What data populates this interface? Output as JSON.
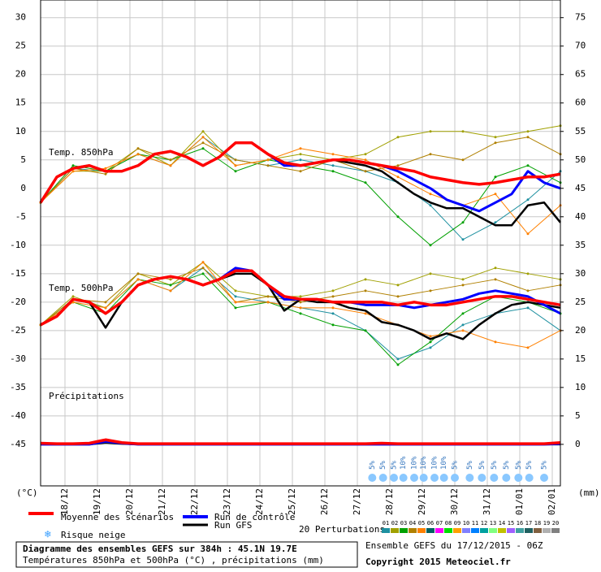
{
  "chart_data": {
    "type": "line",
    "labels": {
      "temp850": "Temp. 850hPa",
      "temp500": "Temp. 500hPa",
      "precip": "Précipitations"
    },
    "y_unit": "(°C)",
    "y2_unit": "(mm)",
    "xlim": [
      0,
      384
    ],
    "xticks": [
      {
        "value": 18,
        "label": "18/12"
      },
      {
        "value": 42,
        "label": "19/12"
      },
      {
        "value": 66,
        "label": "20/12"
      },
      {
        "value": 90,
        "label": "21/12"
      },
      {
        "value": 114,
        "label": "22/12"
      },
      {
        "value": 138,
        "label": "23/12"
      },
      {
        "value": 162,
        "label": "24/12"
      },
      {
        "value": 186,
        "label": "25/12"
      },
      {
        "value": 210,
        "label": "26/12"
      },
      {
        "value": 234,
        "label": "27/12"
      },
      {
        "value": 258,
        "label": "28/12"
      },
      {
        "value": 282,
        "label": "29/12"
      },
      {
        "value": 306,
        "label": "30/12"
      },
      {
        "value": 330,
        "label": "31/12"
      },
      {
        "value": 354,
        "label": "01/01"
      },
      {
        "value": 378,
        "label": "02/01"
      }
    ],
    "ylim": [
      -52.3,
      33.1
    ],
    "yticks": [
      30,
      25,
      20,
      15,
      10,
      5,
      0,
      -5,
      -10,
      -15,
      -20,
      -25,
      -30,
      -35,
      -40,
      -45
    ],
    "y2lim": [
      -7.3,
      78.1
    ],
    "y2ticks": [
      75,
      70,
      65,
      60,
      55,
      50,
      45,
      40,
      35,
      30,
      25,
      20,
      15,
      10,
      5,
      0
    ],
    "grid": true,
    "x": [
      0,
      12,
      24,
      36,
      48,
      60,
      72,
      84,
      96,
      108,
      120,
      132,
      144,
      156,
      168,
      180,
      192,
      204,
      216,
      228,
      240,
      252,
      264,
      276,
      288,
      300,
      312,
      324,
      336,
      348,
      360,
      372,
      384
    ],
    "series": [
      {
        "name": "Moyenne des scénarios",
        "color": "#ff0000",
        "values": [
          -2.5,
          2,
          3.5,
          4,
          3,
          3,
          4,
          6,
          6.5,
          5.5,
          4,
          5.5,
          8,
          8,
          6,
          4.5,
          4,
          4.5,
          5,
          5,
          4.5,
          4,
          3.5,
          3,
          2,
          1.5,
          1,
          0.7,
          1,
          1.5,
          2,
          2,
          2.5
        ],
        "values_500": [
          -24,
          -22.5,
          -19.5,
          -20,
          -22,
          -20,
          -17,
          -16,
          -15.5,
          -16,
          -17,
          -16,
          -14.5,
          -14.5,
          -17,
          -19,
          -19.5,
          -19.5,
          -20,
          -20,
          -20,
          -20,
          -20.5,
          -20,
          -20.5,
          -20.5,
          -20,
          -19.5,
          -19,
          -19,
          -19.5,
          -20,
          -20.5
        ],
        "values_precip": [
          0.2,
          0.1,
          0.1,
          0.2,
          0.8,
          0.3,
          0.1,
          0.1,
          0.1,
          0.1,
          0.1,
          0.1,
          0.1,
          0.1,
          0.1,
          0.1,
          0.1,
          0.1,
          0.1,
          0.1,
          0.1,
          0.2,
          0.1,
          0.1,
          0.1,
          0.1,
          0.1,
          0.1,
          0.1,
          0.1,
          0.1,
          0.1,
          0.3
        ]
      },
      {
        "name": "Run de contrôle",
        "color": "#0000ff",
        "values": [
          -2.5,
          2,
          3.5,
          4,
          3,
          3,
          4,
          6,
          6.5,
          5.5,
          4,
          5.5,
          8,
          8,
          6,
          4,
          4,
          4.5,
          5,
          5,
          4.5,
          4,
          3,
          1.5,
          0,
          -2,
          -3,
          -4,
          -2.5,
          -1,
          3,
          1,
          0
        ],
        "values_500": [
          -24,
          -22.5,
          -19.5,
          -20,
          -22,
          -20,
          -17,
          -16,
          -15.5,
          -16,
          -17,
          -16,
          -14,
          -14.5,
          -17,
          -19.5,
          -19.5,
          -19.5,
          -20,
          -20,
          -20.5,
          -20.5,
          -20.5,
          -21,
          -20.5,
          -20,
          -19.5,
          -18.5,
          -18,
          -18.5,
          -19,
          -20.5,
          -22
        ],
        "values_precip": [
          0,
          0,
          0,
          0,
          0.5,
          0.2,
          0,
          0,
          0,
          0,
          0,
          0,
          0,
          0,
          0,
          0,
          0,
          0,
          0,
          0,
          0,
          0,
          0,
          0,
          0,
          0,
          0,
          0,
          0,
          0,
          0,
          0,
          0.1
        ]
      },
      {
        "name": "Run GFS",
        "color": "#000000",
        "values": [
          -2.5,
          2,
          3.5,
          4,
          3,
          3,
          4,
          6,
          6.5,
          5.5,
          4,
          5.5,
          8,
          8,
          6,
          4.5,
          4,
          4.5,
          5,
          4.5,
          4,
          3,
          1,
          -1,
          -2.5,
          -3.5,
          -3.5,
          -5,
          -6.5,
          -6.5,
          -3,
          -2.5,
          -6
        ],
        "values_500": [
          -24,
          -22.5,
          -19.5,
          -20,
          -24.5,
          -20,
          -17,
          -16,
          -15.5,
          -16,
          -17,
          -16,
          -15,
          -15,
          -17,
          -21.5,
          -19.5,
          -20,
          -20,
          -21,
          -21.5,
          -23.5,
          -24,
          -25,
          -26.5,
          -25.5,
          -26.5,
          -24,
          -22,
          -20.5,
          -20,
          -20.5,
          -21
        ],
        "values_precip": [
          0,
          0,
          0,
          0,
          0.3,
          0.1,
          0,
          0,
          0,
          0,
          0,
          0,
          0,
          0,
          0,
          0,
          0,
          0,
          0,
          0,
          0,
          0,
          0,
          0,
          0,
          0,
          0,
          0,
          0,
          0,
          0,
          0,
          0
        ]
      }
    ],
    "perturbations": {
      "name": "20 Perturbations",
      "x": [
        0,
        24,
        48,
        72,
        96,
        120,
        144,
        168,
        192,
        216,
        240,
        264,
        288,
        312,
        336,
        360,
        384
      ],
      "members": [
        {
          "name": "01",
          "color": "#1e90a0",
          "values": [
            -2.5,
            3.5,
            3,
            6,
            4,
            9,
            5,
            4,
            5,
            4,
            3,
            1,
            -3,
            -9,
            -6,
            -2,
            3
          ],
          "values_500": [
            -24,
            -19.5,
            -21,
            -16,
            -18,
            -14,
            -19,
            -20,
            -21,
            -22,
            -25,
            -30,
            -28,
            -24,
            -22,
            -21,
            -25
          ]
        },
        {
          "name": "02",
          "color": "#a0a000",
          "values": [
            -2.5,
            3,
            3,
            7,
            4,
            10,
            4,
            5,
            6,
            5,
            6,
            9,
            10,
            10,
            9,
            10,
            11
          ],
          "values_500": [
            -24,
            -19,
            -21,
            -15,
            -17,
            -13,
            -18,
            -19,
            -19,
            -18,
            -16,
            -17,
            -15,
            -16,
            -14,
            -15,
            -16
          ]
        },
        {
          "name": "03",
          "color": "#00a000",
          "values": [
            -2.5,
            4,
            3,
            6,
            5,
            7,
            3,
            5,
            4,
            3,
            1,
            -5,
            -10,
            -6,
            2,
            4,
            1
          ],
          "values_500": [
            -24,
            -20,
            -22,
            -16,
            -17,
            -15,
            -21,
            -20,
            -22,
            -24,
            -25,
            -31,
            -27,
            -22,
            -19,
            -20,
            -22
          ]
        },
        {
          "name": "04",
          "color": "#b08000",
          "values": [
            -2.5,
            3.5,
            2.5,
            7,
            5,
            8,
            5,
            4,
            3,
            5,
            3,
            4,
            6,
            5,
            8,
            9,
            6
          ],
          "values_500": [
            -24,
            -19.5,
            -20,
            -15,
            -16,
            -14,
            -20,
            -19,
            -20,
            -19,
            -18,
            -19,
            -18,
            -17,
            -16,
            -18,
            -17
          ]
        },
        {
          "name": "05",
          "color": "#ff8000",
          "values": [
            -2.5,
            3,
            3.5,
            6,
            4,
            9,
            4,
            5,
            7,
            6,
            5,
            2,
            -1,
            -3,
            -1,
            -8,
            -3
          ],
          "values_500": [
            -24,
            -20,
            -21,
            -16,
            -18,
            -13,
            -20,
            -20,
            -21,
            -21,
            -22,
            -24,
            -26,
            -25,
            -27,
            -28,
            -25
          ]
        },
        {
          "name": "06",
          "color": "#006060"
        },
        {
          "name": "07",
          "color": "#ff00ff"
        },
        {
          "name": "08",
          "color": "#00e000"
        },
        {
          "name": "09",
          "color": "#ffa000"
        },
        {
          "name": "10",
          "color": "#8080ff"
        },
        {
          "name": "11",
          "color": "#0080ff"
        },
        {
          "name": "12",
          "color": "#00a0a0"
        },
        {
          "name": "13",
          "color": "#80ff80"
        },
        {
          "name": "14",
          "color": "#c0c000"
        },
        {
          "name": "15",
          "color": "#a060ff"
        },
        {
          "name": "16",
          "color": "#40a0a0"
        },
        {
          "name": "17",
          "color": "#206060"
        },
        {
          "name": "18",
          "color": "#806040"
        },
        {
          "name": "19",
          "color": "#b0b0b0"
        },
        {
          "name": "20",
          "color": "#808080"
        }
      ]
    },
    "snow_risk": {
      "name": "Risque neige",
      "x": [
        245,
        253,
        261,
        268,
        276,
        283,
        291,
        298,
        306,
        317,
        326,
        335,
        344,
        353,
        361,
        372
      ],
      "values": [
        5,
        5,
        5,
        10,
        10,
        10,
        10,
        10,
        5,
        5,
        5,
        5,
        5,
        5,
        5,
        5
      ],
      "value_labels": [
        "5%",
        "5%",
        "5%",
        "10%",
        "10%",
        "10%",
        "10%",
        "10%",
        "5%",
        "5%",
        "5%",
        "5%",
        "5%",
        "5%",
        "5%",
        "5%"
      ]
    },
    "footer": {
      "title": "Diagramme des ensembles GEFS sur 384h : 45.1N 19.7E",
      "subtitle": "Températures 850hPa et 500hPa (°C) , précipitations (mm)",
      "run": "Ensemble GEFS du 17/12/2015 - 06Z",
      "copyright": "Copyright 2015 Meteociel.fr"
    }
  }
}
